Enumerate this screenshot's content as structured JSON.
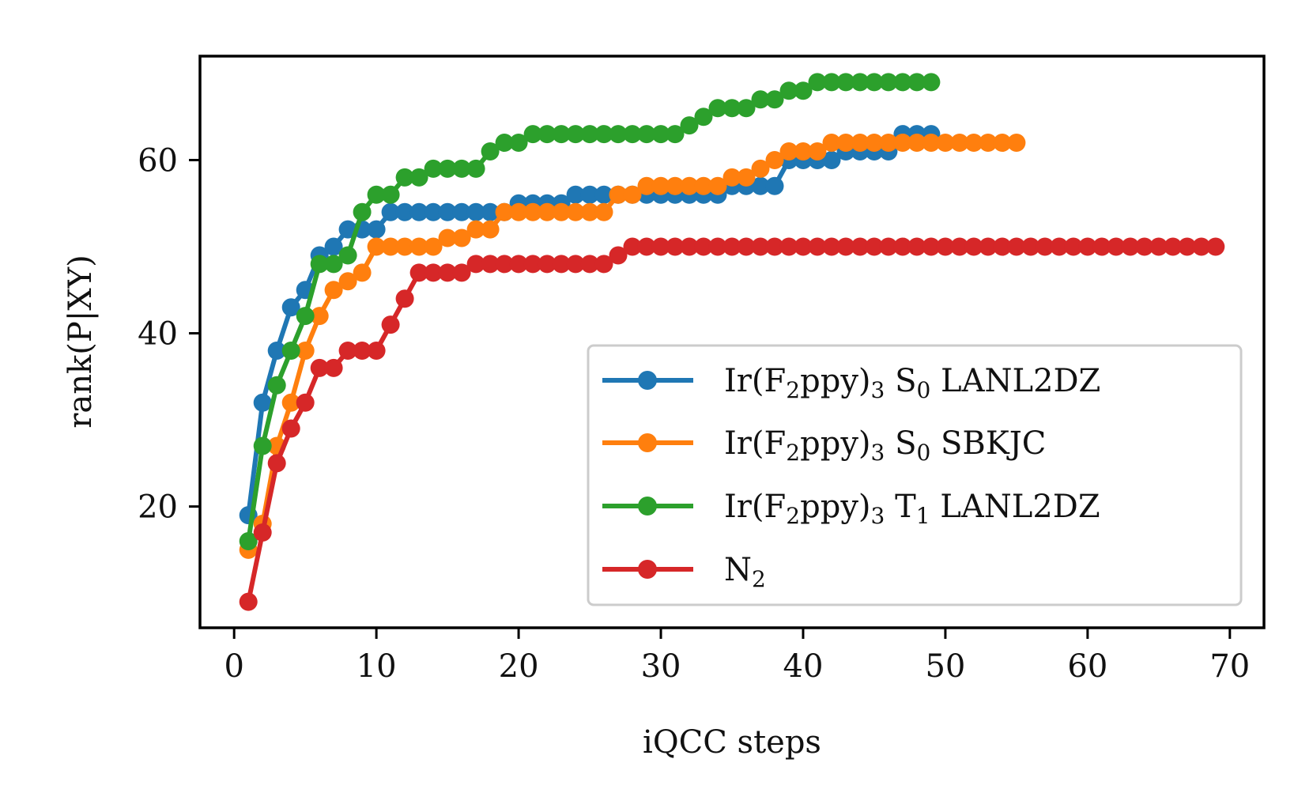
{
  "chart_data": {
    "type": "line",
    "title": "",
    "xlabel": "iQCC steps",
    "ylabel": "rank(P|XY)",
    "xlim": [
      -2.4,
      72.4
    ],
    "ylim": [
      6,
      72
    ],
    "xticks": [
      0,
      10,
      20,
      30,
      40,
      50,
      60,
      70
    ],
    "yticks": [
      20,
      40,
      60
    ],
    "grid": false,
    "legend_position": "lower-right",
    "series": [
      {
        "name": "Ir(F2ppy)3 S0 LANL2DZ",
        "legend_parts": [
          "Ir(F",
          "2",
          "ppy)",
          "3",
          " S",
          "0",
          " LANL2DZ"
        ],
        "color": "#1f77b4",
        "x": [
          1,
          2,
          3,
          4,
          5,
          6,
          7,
          8,
          9,
          10,
          11,
          12,
          13,
          14,
          15,
          16,
          17,
          18,
          19,
          20,
          21,
          22,
          23,
          24,
          25,
          26,
          27,
          28,
          29,
          30,
          31,
          32,
          33,
          34,
          35,
          36,
          37,
          38,
          39,
          40,
          41,
          42,
          43,
          44,
          45,
          46,
          47,
          48,
          49
        ],
        "values": [
          19,
          32,
          38,
          43,
          45,
          49,
          50,
          52,
          52,
          52,
          54,
          54,
          54,
          54,
          54,
          54,
          54,
          54,
          54,
          55,
          55,
          55,
          55,
          56,
          56,
          56,
          56,
          56,
          56,
          56,
          56,
          56,
          56,
          56,
          57,
          57,
          57,
          57,
          60,
          60,
          60,
          60,
          61,
          61,
          61,
          61,
          63,
          63,
          63
        ]
      },
      {
        "name": "Ir(F2ppy)3 S0 SBKJC",
        "legend_parts": [
          "Ir(F",
          "2",
          "ppy)",
          "3",
          " S",
          "0",
          " SBKJC"
        ],
        "color": "#ff7f0e",
        "x": [
          1,
          2,
          3,
          4,
          5,
          6,
          7,
          8,
          9,
          10,
          11,
          12,
          13,
          14,
          15,
          16,
          17,
          18,
          19,
          20,
          21,
          22,
          23,
          24,
          25,
          26,
          27,
          28,
          29,
          30,
          31,
          32,
          33,
          34,
          35,
          36,
          37,
          38,
          39,
          40,
          41,
          42,
          43,
          44,
          45,
          46,
          47,
          48,
          49,
          50,
          51,
          52,
          53,
          54,
          55
        ],
        "values": [
          15,
          18,
          27,
          32,
          38,
          42,
          45,
          46,
          47,
          50,
          50,
          50,
          50,
          50,
          51,
          51,
          52,
          52,
          54,
          54,
          54,
          54,
          54,
          54,
          54,
          54,
          56,
          56,
          57,
          57,
          57,
          57,
          57,
          57,
          58,
          58,
          59,
          60,
          61,
          61,
          61,
          62,
          62,
          62,
          62,
          62,
          62,
          62,
          62,
          62,
          62,
          62,
          62,
          62,
          62
        ]
      },
      {
        "name": "Ir(F2ppy)3 T1 LANL2DZ",
        "legend_parts": [
          "Ir(F",
          "2",
          "ppy)",
          "3",
          " T",
          "1",
          " LANL2DZ"
        ],
        "color": "#2ca02c",
        "x": [
          1,
          2,
          3,
          4,
          5,
          6,
          7,
          8,
          9,
          10,
          11,
          12,
          13,
          14,
          15,
          16,
          17,
          18,
          19,
          20,
          21,
          22,
          23,
          24,
          25,
          26,
          27,
          28,
          29,
          30,
          31,
          32,
          33,
          34,
          35,
          36,
          37,
          38,
          39,
          40,
          41,
          42,
          43,
          44,
          45,
          46,
          47,
          48,
          49
        ],
        "values": [
          16,
          27,
          34,
          38,
          42,
          48,
          48,
          49,
          54,
          56,
          56,
          58,
          58,
          59,
          59,
          59,
          59,
          61,
          62,
          62,
          63,
          63,
          63,
          63,
          63,
          63,
          63,
          63,
          63,
          63,
          63,
          64,
          65,
          66,
          66,
          66,
          67,
          67,
          68,
          68,
          69,
          69,
          69,
          69,
          69,
          69,
          69,
          69,
          69
        ]
      },
      {
        "name": "N2",
        "legend_parts": [
          "N",
          "2",
          "",
          "",
          "",
          "",
          ""
        ],
        "color": "#d62728",
        "x": [
          1,
          2,
          3,
          4,
          5,
          6,
          7,
          8,
          9,
          10,
          11,
          12,
          13,
          14,
          15,
          16,
          17,
          18,
          19,
          20,
          21,
          22,
          23,
          24,
          25,
          26,
          27,
          28,
          29,
          30,
          31,
          32,
          33,
          34,
          35,
          36,
          37,
          38,
          39,
          40,
          41,
          42,
          43,
          44,
          45,
          46,
          47,
          48,
          49,
          50,
          51,
          52,
          53,
          54,
          55,
          56,
          57,
          58,
          59,
          60,
          61,
          62,
          63,
          64,
          65,
          66,
          67,
          68,
          69
        ],
        "values": [
          9,
          17,
          25,
          29,
          32,
          36,
          36,
          38,
          38,
          38,
          41,
          44,
          47,
          47,
          47,
          47,
          48,
          48,
          48,
          48,
          48,
          48,
          48,
          48,
          48,
          48,
          49,
          50,
          50,
          50,
          50,
          50,
          50,
          50,
          50,
          50,
          50,
          50,
          50,
          50,
          50,
          50,
          50,
          50,
          50,
          50,
          50,
          50,
          50,
          50,
          50,
          50,
          50,
          50,
          50,
          50,
          50,
          50,
          50,
          50,
          50,
          50,
          50,
          50,
          50,
          50,
          50,
          50,
          50
        ]
      }
    ]
  }
}
